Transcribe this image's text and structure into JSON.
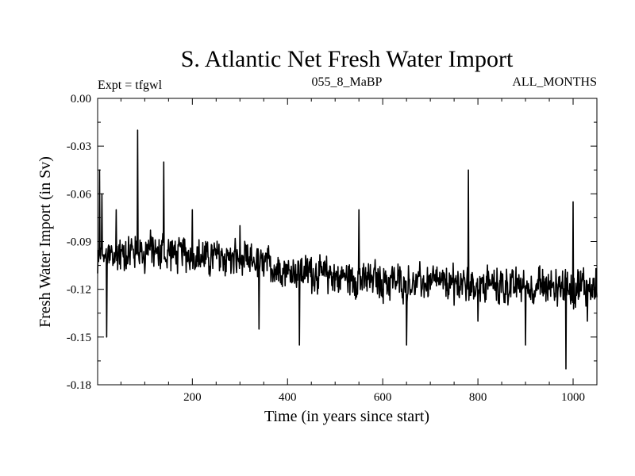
{
  "chart_data": {
    "type": "line",
    "title": "S. Atlantic Net Fresh Water Import",
    "subtitle_left": "Expt = tfgwl",
    "subtitle_center": "055_8_MaBP",
    "subtitle_right": "ALL_MONTHS",
    "xlabel": "Time (in years since start)",
    "ylabel": "Fresh Water Import (in Sv)",
    "xlim": [
      1,
      1050
    ],
    "ylim": [
      -0.18,
      0.0
    ],
    "xticks": [
      200,
      400,
      600,
      800,
      1000
    ],
    "xtick_labels": [
      "200",
      "400",
      "600",
      "800",
      "1000"
    ],
    "yticks": [
      0.0,
      -0.03,
      -0.06,
      -0.09,
      -0.12,
      -0.15,
      -0.18
    ],
    "ytick_labels": [
      "0.00",
      "-0.03",
      "-0.06",
      "-0.09",
      "-0.12",
      "-0.15",
      "-0.18"
    ],
    "series": [
      {
        "name": "S. Atlantic Net Fresh Water Import",
        "color": "#000000",
        "anchors": {
          "note": "approximate local extremes read from the plot; full annual series not individually legible",
          "x": [
            1,
            5,
            10,
            20,
            40,
            60,
            85,
            100,
            140,
            160,
            200,
            250,
            300,
            340,
            380,
            400,
            425,
            450,
            500,
            550,
            600,
            650,
            700,
            750,
            780,
            800,
            850,
            900,
            950,
            985,
            1000,
            1030,
            1050
          ],
          "y": [
            -0.11,
            -0.045,
            -0.06,
            -0.15,
            -0.07,
            -0.09,
            -0.02,
            -0.11,
            -0.04,
            -0.1,
            -0.07,
            -0.095,
            -0.08,
            -0.145,
            -0.1,
            -0.11,
            -0.155,
            -0.1,
            -0.11,
            -0.07,
            -0.12,
            -0.155,
            -0.12,
            -0.13,
            -0.045,
            -0.14,
            -0.11,
            -0.155,
            -0.12,
            -0.17,
            -0.065,
            -0.14,
            -0.125
          ]
        },
        "baseline": {
          "x": [
            1,
            100,
            200,
            300,
            400,
            500,
            600,
            700,
            800,
            900,
            1000,
            1050
          ],
          "y": [
            -0.1,
            -0.095,
            -0.098,
            -0.102,
            -0.108,
            -0.112,
            -0.115,
            -0.116,
            -0.117,
            -0.118,
            -0.118,
            -0.118
          ]
        },
        "noise_amplitude": 0.018
      }
    ]
  }
}
